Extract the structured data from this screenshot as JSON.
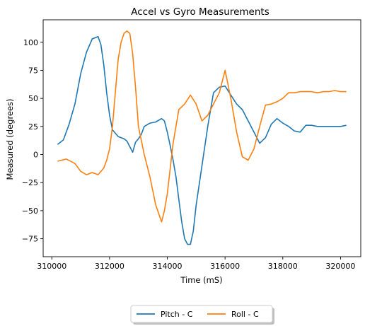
{
  "chart_data": {
    "type": "line",
    "title": "Accel vs Gyro Measurements",
    "xlabel": "Time (mS)",
    "ylabel": "Measured (degrees)",
    "xlim": [
      309700,
      320700
    ],
    "ylim": [
      -91,
      120
    ],
    "xticks": [
      310000,
      312000,
      314000,
      316000,
      318000,
      320000
    ],
    "xtick_labels": [
      "310000",
      "312000",
      "314000",
      "316000",
      "318000",
      "320000"
    ],
    "yticks": [
      -75,
      -50,
      -25,
      0,
      25,
      50,
      75,
      100
    ],
    "ytick_labels": [
      "−75",
      "−50",
      "−25",
      "0",
      "25",
      "50",
      "75",
      "100"
    ],
    "grid": false,
    "legend_position": "bottom-center",
    "series": [
      {
        "name": "Pitch - C",
        "color": "#1f77b4",
        "x": [
          310200,
          310400,
          310600,
          310800,
          311000,
          311200,
          311400,
          311600,
          311700,
          311800,
          311900,
          312000,
          312100,
          312200,
          312300,
          312400,
          312500,
          312600,
          312700,
          312800,
          312900,
          313000,
          313100,
          313200,
          313400,
          313600,
          313800,
          313900,
          314000,
          314100,
          314200,
          314300,
          314400,
          314500,
          314600,
          314700,
          314800,
          314900,
          315000,
          315200,
          315400,
          315600,
          315800,
          316000,
          316200,
          316400,
          316600,
          316800,
          317000,
          317200,
          317400,
          317600,
          317800,
          318000,
          318200,
          318400,
          318600,
          318800,
          319000,
          319200,
          319400,
          319600,
          319800,
          320000,
          320200
        ],
        "y": [
          9,
          13,
          27,
          45,
          72,
          91,
          103,
          105,
          98,
          80,
          55,
          35,
          22,
          19,
          16,
          15,
          14,
          12,
          7,
          2,
          11,
          14,
          18,
          25,
          28,
          29,
          32,
          30,
          20,
          8,
          -5,
          -20,
          -40,
          -60,
          -75,
          -80,
          -80,
          -68,
          -45,
          -10,
          25,
          55,
          60,
          61,
          53,
          45,
          40,
          30,
          20,
          10,
          15,
          27,
          32,
          28,
          25,
          21,
          20,
          26,
          26,
          25,
          25,
          25,
          25,
          25,
          26
        ]
      },
      {
        "name": "Roll - C",
        "color": "#ff7f0e",
        "x": [
          310200,
          310500,
          310800,
          311000,
          311200,
          311400,
          311600,
          311800,
          311900,
          312000,
          312100,
          312200,
          312300,
          312400,
          312500,
          312600,
          312700,
          312800,
          312900,
          313000,
          313200,
          313400,
          313600,
          313800,
          313900,
          314000,
          314200,
          314400,
          314600,
          314800,
          315000,
          315200,
          315400,
          315600,
          315800,
          316000,
          316200,
          316400,
          316600,
          316800,
          317000,
          317200,
          317400,
          317600,
          317800,
          318000,
          318200,
          318400,
          318600,
          318800,
          319000,
          319200,
          319400,
          319600,
          319800,
          320000,
          320200
        ],
        "y": [
          -6,
          -4,
          -8,
          -15,
          -18,
          -16,
          -18,
          -12,
          -5,
          5,
          25,
          55,
          85,
          100,
          108,
          110,
          108,
          90,
          60,
          25,
          0,
          -20,
          -45,
          -60,
          -50,
          -35,
          10,
          40,
          45,
          53,
          45,
          30,
          35,
          45,
          55,
          75,
          50,
          20,
          -2,
          -5,
          5,
          25,
          44,
          45,
          47,
          50,
          55,
          55,
          56,
          56,
          56,
          55,
          56,
          56,
          57,
          56,
          56
        ]
      }
    ]
  }
}
